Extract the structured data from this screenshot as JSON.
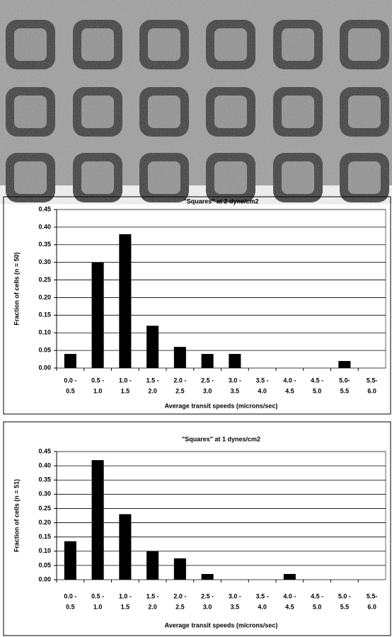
{
  "chart_data": [
    {
      "type": "bar",
      "title": "\"Squares\" at 2 dyne/cm2",
      "y_label": "Fraction of cells (n = 50)",
      "x_label": "Average transit speeds (microns/sec)",
      "categories": [
        [
          "0.0 -",
          "0.5"
        ],
        [
          "0.5 -",
          "1.0"
        ],
        [
          "1.0 -",
          "1.5"
        ],
        [
          "1.5 -",
          "2.0"
        ],
        [
          "2.0 -",
          "2.5"
        ],
        [
          "2.5 -",
          "3.0"
        ],
        [
          "3.0 -",
          "3.5"
        ],
        [
          "3.5 -",
          "4.0"
        ],
        [
          "4.0 -",
          "4.5"
        ],
        [
          "4.5 -",
          "5.0"
        ],
        [
          "5.0-",
          "5.5"
        ],
        [
          "5.5-",
          "6.0"
        ]
      ],
      "values": [
        0.04,
        0.3,
        0.38,
        0.12,
        0.06,
        0.04,
        0.04,
        0,
        0,
        0,
        0.02,
        0
      ],
      "color": "#000000",
      "ylim": [
        0,
        0.45
      ],
      "yticks": [
        {
          "value": 0,
          "label": "0.00"
        },
        {
          "value": 0.05,
          "label": "0.05"
        },
        {
          "value": 0.1,
          "label": "0.10"
        },
        {
          "value": 0.15,
          "label": "0.15"
        },
        {
          "value": 0.2,
          "label": "0.20"
        },
        {
          "value": 0.25,
          "label": "0.25"
        },
        {
          "value": 0.3,
          "label": "0.30"
        },
        {
          "value": 0.35,
          "label": "0.35"
        },
        {
          "value": 0.4,
          "label": "0.40"
        },
        {
          "value": 0.45,
          "label": "0.45"
        }
      ],
      "grid": true
    },
    {
      "type": "bar",
      "title": "\"Squares\" at 1 dynes/cm2",
      "y_label": "Fraction of cells (n = 51)",
      "x_label": "Average transit speeds (microns/sec)",
      "categories": [
        [
          "0.0 -",
          "0.5"
        ],
        [
          "0.5 -",
          "1.0"
        ],
        [
          "1.0 -",
          "1.5"
        ],
        [
          "1.5 -",
          "2.0"
        ],
        [
          "2.0 -",
          "2.5"
        ],
        [
          "2.5 -",
          "3.0"
        ],
        [
          "3.0 -",
          "3.5"
        ],
        [
          "3.5 -",
          "4.0"
        ],
        [
          "4.0 -",
          "4.5"
        ],
        [
          "4.5 -",
          "5.0"
        ],
        [
          "5.0 -",
          "5.5"
        ],
        [
          "5.5-",
          "6.0"
        ]
      ],
      "values": [
        0.135,
        0.42,
        0.23,
        0.1,
        0.075,
        0.02,
        0,
        0,
        0.02,
        0,
        0,
        0
      ],
      "color": "#000000",
      "ylim": [
        0,
        0.45
      ],
      "yticks": [
        {
          "value": 0,
          "label": "0.00"
        },
        {
          "value": 0.05,
          "label": "0.05"
        },
        {
          "value": 0.1,
          "label": "0.10"
        },
        {
          "value": 0.15,
          "label": "0.15"
        },
        {
          "value": 0.2,
          "label": "0.20"
        },
        {
          "value": 0.25,
          "label": "0.25"
        },
        {
          "value": 0.3,
          "label": "0.30"
        },
        {
          "value": 0.35,
          "label": "0.35"
        },
        {
          "value": 0.4,
          "label": "0.40"
        },
        {
          "value": 0.45,
          "label": "0.45"
        }
      ],
      "grid": true
    }
  ]
}
